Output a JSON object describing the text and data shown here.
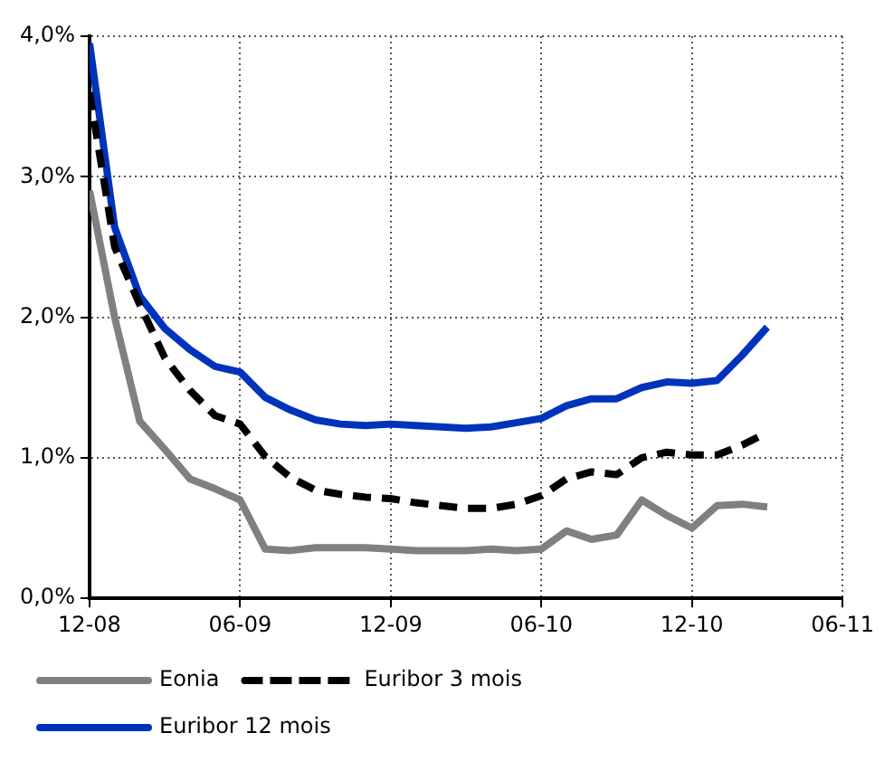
{
  "chart_data": {
    "type": "line",
    "x": [
      "2008-12",
      "2009-01",
      "2009-02",
      "2009-03",
      "2009-04",
      "2009-05",
      "2009-06",
      "2009-07",
      "2009-08",
      "2009-09",
      "2009-10",
      "2009-11",
      "2009-12",
      "2010-01",
      "2010-02",
      "2010-03",
      "2010-04",
      "2010-05",
      "2010-06",
      "2010-07",
      "2010-08",
      "2010-09",
      "2010-10",
      "2010-11",
      "2010-12",
      "2011-01",
      "2011-02",
      "2011-03"
    ],
    "series": [
      {
        "name": "Eonia",
        "color": "#808080",
        "line_style": "solid",
        "values": [
          2.9,
          2.0,
          1.26,
          1.06,
          0.85,
          0.78,
          0.7,
          0.35,
          0.34,
          0.36,
          0.36,
          0.36,
          0.35,
          0.34,
          0.34,
          0.34,
          0.35,
          0.34,
          0.35,
          0.48,
          0.42,
          0.45,
          0.7,
          0.59,
          0.5,
          0.66,
          0.67,
          0.65
        ]
      },
      {
        "name": "Euribor 3 mois",
        "color": "#000000",
        "line_style": "dashed",
        "values": [
          3.6,
          2.5,
          2.09,
          1.71,
          1.48,
          1.3,
          1.24,
          1.01,
          0.86,
          0.77,
          0.74,
          0.72,
          0.71,
          0.68,
          0.66,
          0.64,
          0.64,
          0.67,
          0.73,
          0.85,
          0.9,
          0.88,
          1.0,
          1.04,
          1.02,
          1.02,
          1.09,
          1.18
        ]
      },
      {
        "name": "Euribor 12 mois",
        "color": "#0033bb",
        "line_style": "solid",
        "values": [
          3.95,
          2.64,
          2.15,
          1.92,
          1.77,
          1.65,
          1.61,
          1.43,
          1.34,
          1.27,
          1.24,
          1.23,
          1.24,
          1.23,
          1.22,
          1.21,
          1.22,
          1.25,
          1.28,
          1.37,
          1.42,
          1.42,
          1.5,
          1.54,
          1.53,
          1.55,
          1.73,
          1.93
        ]
      }
    ],
    "xlim": [
      "2008-12",
      "2011-06"
    ],
    "xticks": [
      {
        "value": "2008-12",
        "label": "12-08"
      },
      {
        "value": "2009-06",
        "label": "06-09"
      },
      {
        "value": "2009-12",
        "label": "12-09"
      },
      {
        "value": "2010-06",
        "label": "06-10"
      },
      {
        "value": "2010-12",
        "label": "12-10"
      },
      {
        "value": "2011-06",
        "label": "06-11"
      }
    ],
    "ylim": [
      0,
      4
    ],
    "yticks": [
      {
        "value": 0,
        "label": "0,0%"
      },
      {
        "value": 1,
        "label": "1,0%"
      },
      {
        "value": 2,
        "label": "2,0%"
      },
      {
        "value": 3,
        "label": "3,0%"
      },
      {
        "value": 4,
        "label": "4,0%"
      }
    ],
    "grid": true,
    "legend": "bottom",
    "marker": "none"
  }
}
